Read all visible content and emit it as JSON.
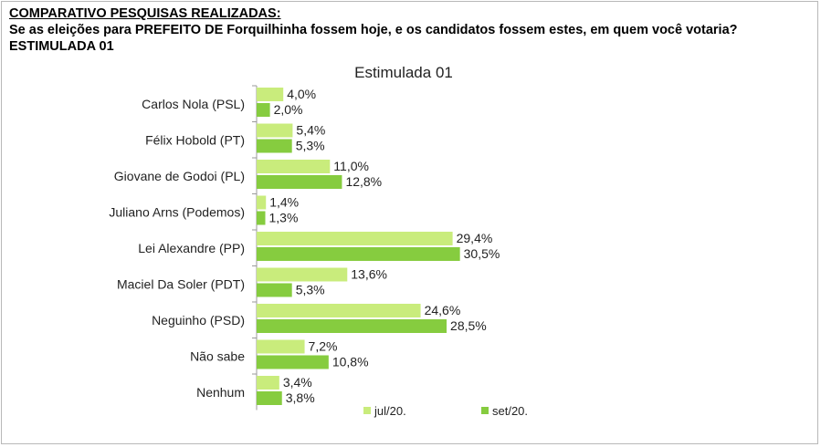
{
  "heading": {
    "line1": "COMPARATIVO PESQUISAS REALIZADAS:",
    "line2": "Se as eleições para PREFEITO DE Forquilhinha fossem hoje, e os candidatos fossem estes, em quem você votaria? ESTIMULADA 01"
  },
  "colors": {
    "jul": "#c9ec7c",
    "set": "#86cc3f",
    "axis": "#9a9a9a"
  },
  "chart_data": {
    "type": "bar",
    "orientation": "horizontal",
    "title": "Estimulada 01",
    "categories": [
      "Carlos Nola (PSL)",
      "Félix Hobold (PT)",
      "Giovane de Godoi (PL)",
      "Juliano Arns (Podemos)",
      "Lei Alexandre (PP)",
      "Maciel Da Soler (PDT)",
      "Neguinho (PSD)",
      "Não sabe",
      "Nenhum"
    ],
    "series": [
      {
        "name": "jul/20.",
        "values": [
          4.0,
          5.4,
          11.0,
          1.4,
          29.4,
          13.6,
          24.6,
          7.2,
          3.4
        ],
        "labels": [
          "4,0%",
          "5,4%",
          "11,0%",
          "1,4%",
          "29,4%",
          "13,6%",
          "24,6%",
          "7,2%",
          "3,4%"
        ]
      },
      {
        "name": "set/20.",
        "values": [
          2.0,
          5.3,
          12.8,
          1.3,
          30.5,
          5.3,
          28.5,
          10.8,
          3.8
        ],
        "labels": [
          "2,0%",
          "5,3%",
          "12,8%",
          "1,3%",
          "30,5%",
          "5,3%",
          "28,5%",
          "10,8%",
          "3,8%"
        ]
      }
    ],
    "xlim": [
      0,
      35
    ],
    "grid": false,
    "legend": "bottom"
  }
}
